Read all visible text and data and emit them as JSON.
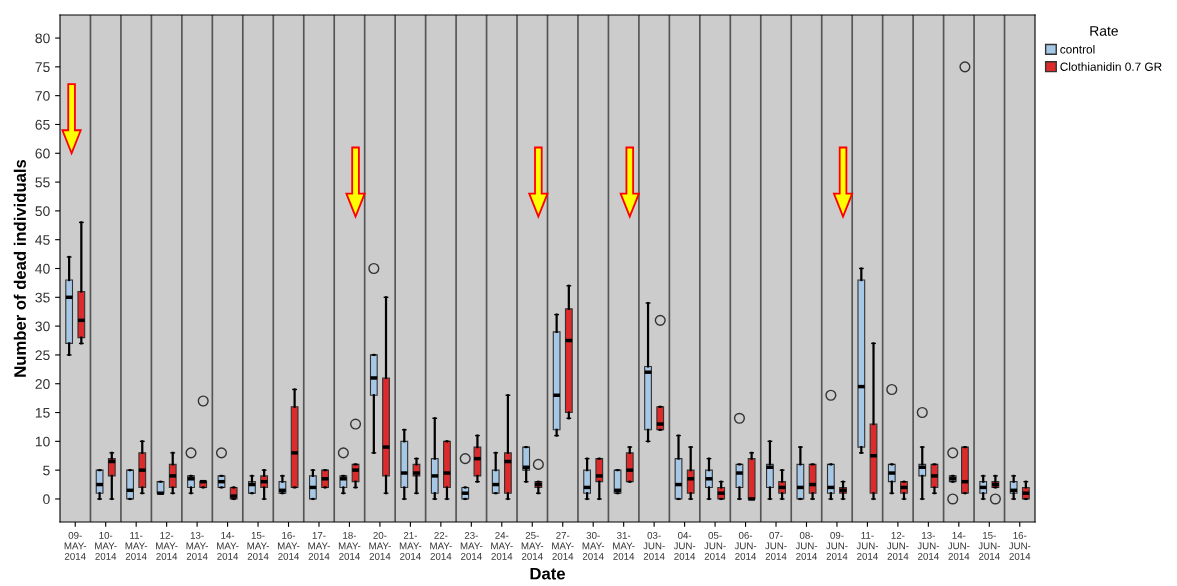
{
  "chart_data": {
    "type": "box",
    "xlabel": "Date",
    "ylabel": "Number of dead individuals",
    "legend_title": "Rate",
    "legend": "top right",
    "grid": "x",
    "categories": [
      "09-MAY-2014",
      "10-MAY-2014",
      "11-MAY-2014",
      "12-MAY-2014",
      "13-MAY-2014",
      "14-MAY-2014",
      "15-MAY-2014",
      "16-MAY-2014",
      "17-MAY-2014",
      "18-MAY-2014",
      "20-MAY-2014",
      "21-MAY-2014",
      "22-MAY-2014",
      "23-MAY-2014",
      "24-MAY-2014",
      "25-MAY-2014",
      "27-MAY-2014",
      "30-MAY-2014",
      "31-MAY-2014",
      "03-JUN-2014",
      "04-JUN-2014",
      "05-JUN-2014",
      "06-JUN-2014",
      "07-JUN-2014",
      "08-JUN-2014",
      "09-JUN-2014",
      "11-JUN-2014",
      "12-JUN-2014",
      "13-JUN-2014",
      "14-JUN-2014",
      "15-JUN-2014",
      "16-JUN-2014"
    ],
    "ylim": [
      -4,
      84
    ],
    "yticks": [
      0,
      5,
      10,
      15,
      20,
      25,
      30,
      35,
      40,
      45,
      50,
      55,
      60,
      65,
      70,
      75,
      80
    ],
    "series": [
      {
        "name": "control",
        "color": "#a6c8e6",
        "boxes": [
          {
            "low": 25,
            "q1": 27,
            "median": 35,
            "q3": 38,
            "high": 42
          },
          {
            "low": 0,
            "q1": 1,
            "median": 2.5,
            "q3": 5,
            "high": 5
          },
          {
            "low": 0,
            "q1": 0,
            "median": 1.5,
            "q3": 5,
            "high": 5
          },
          {
            "low": 1,
            "q1": 1,
            "median": 1,
            "q3": 3,
            "high": 3
          },
          {
            "low": 1,
            "q1": 2,
            "median": 3.5,
            "q3": 4,
            "high": 4,
            "outliers": [
              8
            ]
          },
          {
            "low": 2,
            "q1": 2,
            "median": 3,
            "q3": 4,
            "high": 4,
            "outliers": [
              8
            ]
          },
          {
            "low": 1,
            "q1": 1,
            "median": 2.5,
            "q3": 3,
            "high": 4
          },
          {
            "low": 1,
            "q1": 1,
            "median": 1.5,
            "q3": 3,
            "high": 4
          },
          {
            "low": 0,
            "q1": 0,
            "median": 2,
            "q3": 4,
            "high": 5
          },
          {
            "low": 1,
            "q1": 2,
            "median": 3.5,
            "q3": 4,
            "high": 4,
            "outliers": [
              8
            ]
          },
          {
            "low": 8,
            "q1": 18,
            "median": 21,
            "q3": 25,
            "high": 25,
            "outliers": [
              40
            ]
          },
          {
            "low": 0,
            "q1": 2,
            "median": 4.5,
            "q3": 10,
            "high": 12
          },
          {
            "low": 0,
            "q1": 1,
            "median": 4,
            "q3": 7,
            "high": 14
          },
          {
            "low": 0,
            "q1": 0,
            "median": 1,
            "q3": 2,
            "high": 2,
            "outliers": [
              7
            ]
          },
          {
            "low": 1,
            "q1": 1,
            "median": 2.5,
            "q3": 5,
            "high": 8
          },
          {
            "low": 3,
            "q1": 5,
            "median": 5.5,
            "q3": 9,
            "high": 9
          },
          {
            "low": 11,
            "q1": 12,
            "median": 18,
            "q3": 29,
            "high": 32
          },
          {
            "low": 0,
            "q1": 1,
            "median": 2,
            "q3": 5,
            "high": 7
          },
          {
            "low": 1,
            "q1": 1,
            "median": 1.5,
            "q3": 5,
            "high": 5
          },
          {
            "low": 10,
            "q1": 12,
            "median": 22,
            "q3": 23,
            "high": 34
          },
          {
            "low": 0,
            "q1": 0,
            "median": 2.5,
            "q3": 7,
            "high": 11
          },
          {
            "low": 0,
            "q1": 2,
            "median": 3.5,
            "q3": 5,
            "high": 7
          },
          {
            "low": 0,
            "q1": 2,
            "median": 4.5,
            "q3": 6,
            "high": 6,
            "outliers": [
              14
            ]
          },
          {
            "low": 0,
            "q1": 2,
            "median": 5.5,
            "q3": 6,
            "high": 10
          },
          {
            "low": 0,
            "q1": 0,
            "median": 2,
            "q3": 6,
            "high": 9
          },
          {
            "low": 0,
            "q1": 1,
            "median": 2,
            "q3": 6,
            "high": 6,
            "outliers": [
              18
            ]
          },
          {
            "low": 8,
            "q1": 9,
            "median": 19.5,
            "q3": 38,
            "high": 40
          },
          {
            "low": 1,
            "q1": 3,
            "median": 4.5,
            "q3": 6,
            "high": 6,
            "outliers": [
              19
            ]
          },
          {
            "low": 0,
            "q1": 4,
            "median": 5.5,
            "q3": 6,
            "high": 9,
            "outliers": [
              15
            ]
          },
          {
            "low": 3,
            "q1": 3,
            "median": 3.5,
            "q3": 4,
            "high": 4,
            "outliers": [
              0,
              8
            ]
          },
          {
            "low": 0,
            "q1": 1,
            "median": 2,
            "q3": 3,
            "high": 4
          },
          {
            "low": 0,
            "q1": 1,
            "median": 1.5,
            "q3": 3,
            "high": 4
          }
        ]
      },
      {
        "name": "Clothianidin 0.7 GR",
        "color": "#dd2a2a",
        "boxes": [
          {
            "low": 27,
            "q1": 28,
            "median": 31,
            "q3": 36,
            "high": 48
          },
          {
            "low": 0,
            "q1": 4,
            "median": 6.5,
            "q3": 7,
            "high": 8
          },
          {
            "low": 1,
            "q1": 2,
            "median": 5,
            "q3": 8,
            "high": 10
          },
          {
            "low": 1,
            "q1": 2,
            "median": 4,
            "q3": 6,
            "high": 8
          },
          {
            "low": 2,
            "q1": 2,
            "median": 3,
            "q3": 3,
            "high": 3,
            "outliers": [
              17
            ]
          },
          {
            "low": 0,
            "q1": 0,
            "median": 0.5,
            "q3": 2,
            "high": 2
          },
          {
            "low": 0,
            "q1": 2,
            "median": 3,
            "q3": 4,
            "high": 5
          },
          {
            "low": 2,
            "q1": 2,
            "median": 8,
            "q3": 16,
            "high": 19
          },
          {
            "low": 2,
            "q1": 2,
            "median": 3.5,
            "q3": 5,
            "high": 5
          },
          {
            "low": 2,
            "q1": 3,
            "median": 5,
            "q3": 6,
            "high": 6,
            "outliers": [
              13
            ]
          },
          {
            "low": 1,
            "q1": 4,
            "median": 9,
            "q3": 21,
            "high": 35
          },
          {
            "low": 1,
            "q1": 4,
            "median": 4.5,
            "q3": 6,
            "high": 7
          },
          {
            "low": 0,
            "q1": 2,
            "median": 4.5,
            "q3": 10,
            "high": 10
          },
          {
            "low": 3,
            "q1": 4,
            "median": 7,
            "q3": 9,
            "high": 11
          },
          {
            "low": 0,
            "q1": 1,
            "median": 6.5,
            "q3": 8,
            "high": 18
          },
          {
            "low": 1,
            "q1": 2,
            "median": 2.5,
            "q3": 3,
            "high": 3,
            "outliers": [
              6
            ]
          },
          {
            "low": 14,
            "q1": 15,
            "median": 27.5,
            "q3": 33,
            "high": 37
          },
          {
            "low": 0,
            "q1": 3,
            "median": 4,
            "q3": 7,
            "high": 7
          },
          {
            "low": 3,
            "q1": 3,
            "median": 5,
            "q3": 8,
            "high": 9
          },
          {
            "low": 12,
            "q1": 12,
            "median": 13,
            "q3": 16,
            "high": 16,
            "outliers": [
              31
            ]
          },
          {
            "low": 0,
            "q1": 1,
            "median": 3.5,
            "q3": 5,
            "high": 9
          },
          {
            "low": 0,
            "q1": 0,
            "median": 1,
            "q3": 2,
            "high": 3
          },
          {
            "low": 0,
            "q1": 0,
            "median": 0,
            "q3": 7,
            "high": 8
          },
          {
            "low": 0,
            "q1": 1,
            "median": 2,
            "q3": 3,
            "high": 5
          },
          {
            "low": 0,
            "q1": 1,
            "median": 2.5,
            "q3": 6,
            "high": 6
          },
          {
            "low": 0,
            "q1": 1,
            "median": 1.5,
            "q3": 2,
            "high": 3
          },
          {
            "low": 0,
            "q1": 1,
            "median": 7.5,
            "q3": 13,
            "high": 27
          },
          {
            "low": 0,
            "q1": 1,
            "median": 2,
            "q3": 3,
            "high": 3
          },
          {
            "low": 1,
            "q1": 2,
            "median": 4,
            "q3": 6,
            "high": 6
          },
          {
            "low": 1,
            "q1": 1,
            "median": 3,
            "q3": 9,
            "high": 9,
            "outliers": [
              75
            ]
          },
          {
            "low": 2,
            "q1": 2,
            "median": 2.5,
            "q3": 3,
            "high": 4,
            "outliers": [
              0
            ]
          },
          {
            "low": 0,
            "q1": 0,
            "median": 1,
            "q3": 2,
            "high": 3
          }
        ]
      }
    ]
  }
}
